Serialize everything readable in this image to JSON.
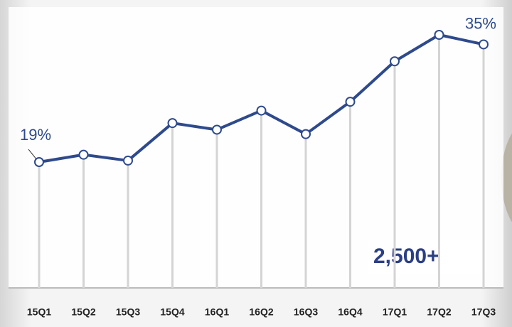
{
  "chart_data": {
    "type": "line",
    "categories": [
      "15Q1",
      "15Q2",
      "15Q3",
      "15Q4",
      "16Q1",
      "16Q2",
      "16Q3",
      "16Q4",
      "17Q1",
      "17Q2",
      "17Q3"
    ],
    "values": [
      19,
      20,
      19.2,
      24.3,
      23.4,
      26,
      22.8,
      27.2,
      32.7,
      36.3,
      35
    ],
    "value_labels": [
      "19%",
      null,
      null,
      null,
      null,
      null,
      null,
      null,
      null,
      null,
      "35%"
    ],
    "color": "#2e4a8c",
    "annotation": "2,500+"
  }
}
